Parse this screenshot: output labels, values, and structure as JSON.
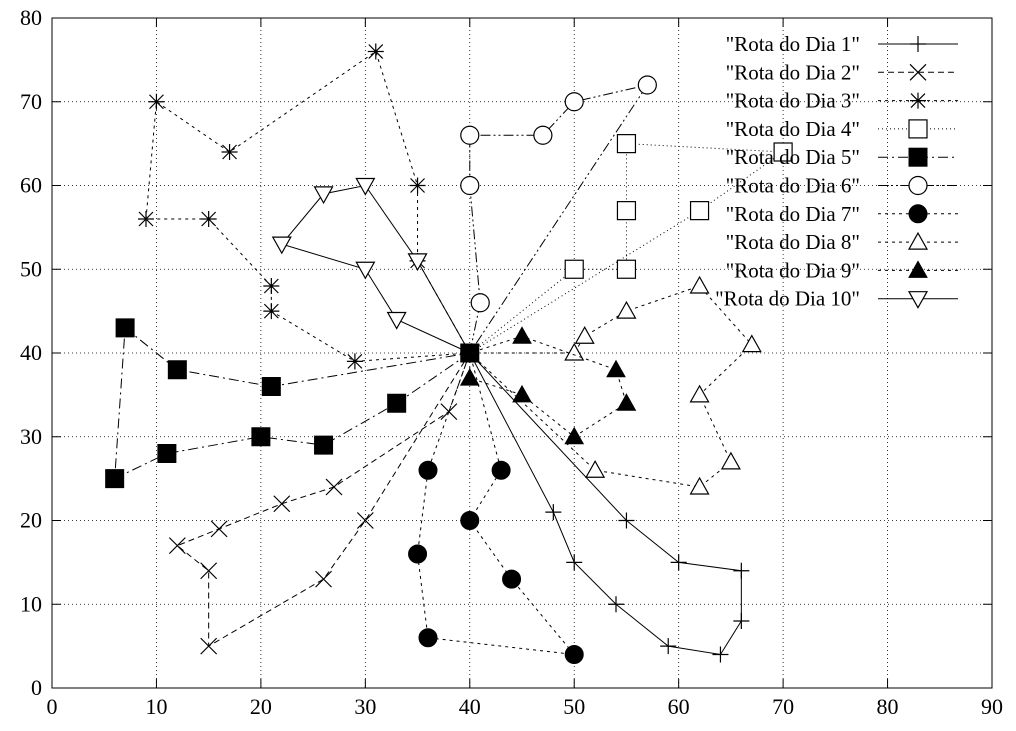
{
  "chart_data": {
    "type": "scatter",
    "title": "",
    "xlabel": "",
    "ylabel": "",
    "xlim": [
      0,
      90
    ],
    "ylim": [
      0,
      80
    ],
    "xticks": [
      "0",
      "10",
      "20",
      "30",
      "40",
      "50",
      "60",
      "70",
      "80",
      "90"
    ],
    "yticks": [
      "0",
      "10",
      "20",
      "30",
      "40",
      "50",
      "60",
      "70",
      "80"
    ],
    "grid": true,
    "legend_position": "top-right",
    "depot": [
      40,
      40
    ],
    "series": [
      {
        "name": "\"Rota do Dia 1\"",
        "marker": "plus",
        "dash": "",
        "points": [
          [
            40,
            40
          ],
          [
            48,
            21
          ],
          [
            50,
            15
          ],
          [
            54,
            10
          ],
          [
            59,
            5
          ],
          [
            64,
            4
          ],
          [
            66,
            8
          ],
          [
            66,
            14
          ],
          [
            60,
            15
          ],
          [
            55,
            20
          ],
          [
            40,
            40
          ]
        ]
      },
      {
        "name": "\"Rota do Dia 2\"",
        "marker": "cross",
        "dash": "6,4",
        "points": [
          [
            40,
            40
          ],
          [
            30,
            20
          ],
          [
            26,
            13
          ],
          [
            15,
            5
          ],
          [
            15,
            14
          ],
          [
            12,
            17
          ],
          [
            16,
            19
          ],
          [
            22,
            22
          ],
          [
            27,
            24
          ],
          [
            38,
            33
          ],
          [
            40,
            40
          ]
        ]
      },
      {
        "name": "\"Rota do Dia 3\"",
        "marker": "asterisk",
        "dash": "3,4",
        "points": [
          [
            40,
            40
          ],
          [
            29,
            39
          ],
          [
            21,
            45
          ],
          [
            21,
            48
          ],
          [
            15,
            56
          ],
          [
            9,
            56
          ],
          [
            10,
            70
          ],
          [
            17,
            64
          ],
          [
            31,
            76
          ],
          [
            35,
            60
          ],
          [
            35,
            51
          ],
          [
            40,
            40
          ]
        ]
      },
      {
        "name": "\"Rota do Dia 4\"",
        "marker": "square-open",
        "dash": "1,3",
        "points": [
          [
            40,
            40
          ],
          [
            50,
            50
          ],
          [
            55,
            50
          ],
          [
            55,
            57
          ],
          [
            55,
            65
          ],
          [
            70,
            64
          ],
          [
            62,
            57
          ],
          [
            40,
            40
          ]
        ]
      },
      {
        "name": "\"Rota do Dia 5\"",
        "marker": "square-filled",
        "dash": "10,4,2,4",
        "points": [
          [
            40,
            40
          ],
          [
            33,
            34
          ],
          [
            26,
            29
          ],
          [
            20,
            30
          ],
          [
            11,
            28
          ],
          [
            6,
            25
          ],
          [
            7,
            43
          ],
          [
            12,
            38
          ],
          [
            21,
            36
          ],
          [
            40,
            40
          ]
        ]
      },
      {
        "name": "\"Rota do Dia 6\"",
        "marker": "circle-open",
        "dash": "10,3,2,3,2,3",
        "points": [
          [
            40,
            40
          ],
          [
            41,
            46
          ],
          [
            40,
            60
          ],
          [
            40,
            66
          ],
          [
            47,
            66
          ],
          [
            50,
            70
          ],
          [
            57,
            72
          ],
          [
            40,
            40
          ]
        ]
      },
      {
        "name": "\"Rota do Dia 7\"",
        "marker": "circle-filled",
        "dash": "3,4",
        "points": [
          [
            40,
            40
          ],
          [
            36,
            26
          ],
          [
            35,
            16
          ],
          [
            36,
            6
          ],
          [
            50,
            4
          ],
          [
            44,
            13
          ],
          [
            40,
            20
          ],
          [
            43,
            26
          ],
          [
            40,
            40
          ]
        ]
      },
      {
        "name": "\"Rota do Dia 8\"",
        "marker": "triangle-open",
        "dash": "3,4",
        "points": [
          [
            40,
            40
          ],
          [
            50,
            40
          ],
          [
            51,
            42
          ],
          [
            55,
            45
          ],
          [
            62,
            48
          ],
          [
            67,
            41
          ],
          [
            62,
            35
          ],
          [
            65,
            27
          ],
          [
            62,
            24
          ],
          [
            52,
            26
          ],
          [
            40,
            40
          ]
        ]
      },
      {
        "name": "\"Rota do Dia 9\"",
        "marker": "triangle-filled",
        "dash": "3,4",
        "points": [
          [
            40,
            40
          ],
          [
            40,
            37
          ],
          [
            45,
            35
          ],
          [
            50,
            30
          ],
          [
            55,
            34
          ],
          [
            54,
            38
          ],
          [
            45,
            42
          ],
          [
            40,
            40
          ]
        ]
      },
      {
        "name": "\"Rota do Dia 10\"",
        "marker": "triangle-down-open",
        "dash": "",
        "points": [
          [
            40,
            40
          ],
          [
            33,
            44
          ],
          [
            30,
            50
          ],
          [
            22,
            53
          ],
          [
            26,
            59
          ],
          [
            30,
            60
          ],
          [
            35,
            51
          ],
          [
            40,
            40
          ]
        ]
      }
    ]
  }
}
